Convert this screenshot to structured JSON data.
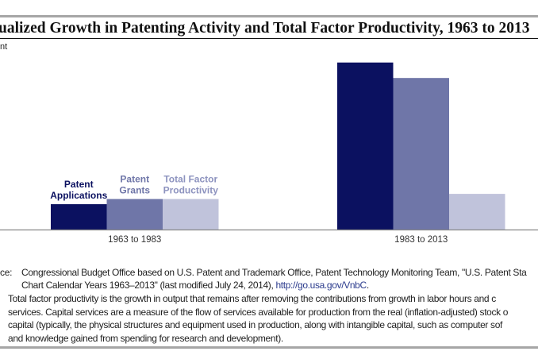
{
  "chart_data": {
    "type": "bar",
    "title": "ualized Growth in Patenting Activity and Total Factor Productivity, 1963 to 2013",
    "ylabel": "nt",
    "categories": [
      "1963 to 1983",
      "1983 to 2013"
    ],
    "series": [
      {
        "name": "Patent Applications",
        "label_lines": [
          "Patent",
          "Applications"
        ],
        "values": [
          1.0,
          6.5
        ],
        "color": "#0b1160",
        "label_color": "#0b1160"
      },
      {
        "name": "Patent Grants",
        "label_lines": [
          "Patent",
          "Grants"
        ],
        "values": [
          1.2,
          5.9
        ],
        "color": "#6f76a8",
        "label_color": "#6f76a8"
      },
      {
        "name": "Total Factor Productivity",
        "label_lines": [
          "Total Factor",
          "Productivity"
        ],
        "values": [
          1.2,
          1.4
        ],
        "color": "#c0c3db",
        "label_color": "#8d93bf"
      }
    ],
    "ylim": [
      0,
      7
    ],
    "grid": false,
    "legend": "direct labels above first group"
  },
  "source": {
    "label": "ce:",
    "text": "Congressional Budget Office based on U.S. Patent and Trademark Office, Patent Technology Monitoring Team, \"U.S. Patent Sta",
    "text2": "Chart Calendar Years 1963–2013\" (last modified July 24, 2014), ",
    "link": "http://go.usa.gov/VnbC",
    "end": "."
  },
  "note": {
    "lines": [
      "Total factor productivity is the growth in output that remains after removing the contributions from growth in labor hours and c",
      "services. Capital services are a measure of the flow of services available for production from the real (inflation-adjusted) stock o",
      "capital (typically, the physical structures and equipment used in production, along with intangible capital, such as computer sof",
      "and knowledge gained from spending for research and development)."
    ]
  }
}
